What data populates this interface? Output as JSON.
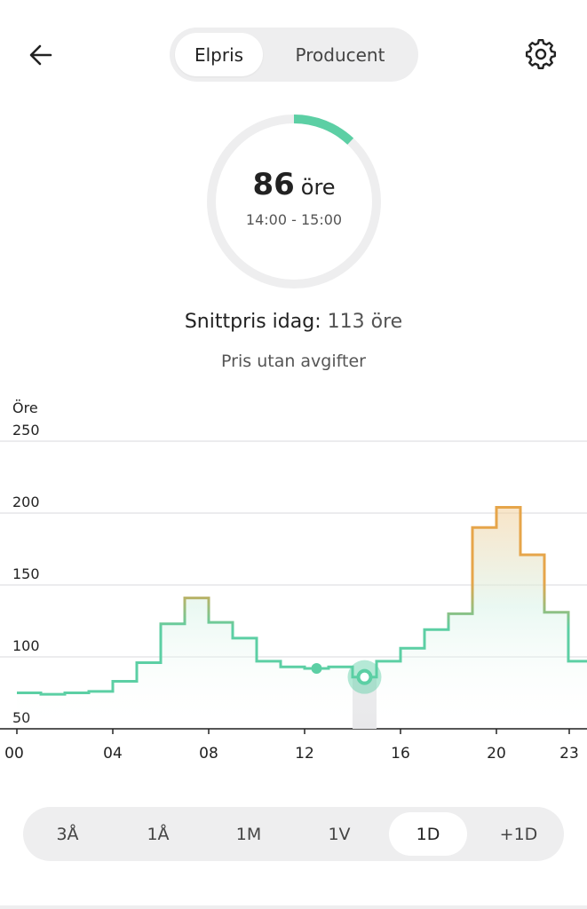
{
  "header": {
    "back_icon": "arrow-left-icon",
    "settings_icon": "gear-icon",
    "tabs": [
      {
        "label": "Elpris",
        "active": true
      },
      {
        "label": "Producent",
        "active": false
      }
    ]
  },
  "current": {
    "price": "86",
    "unit": "öre",
    "time_range": "14:00 - 15:00",
    "gauge_fraction": 0.12
  },
  "summary": {
    "avg_label": "Snittpris idag:",
    "avg_value": "113 öre",
    "subtitle": "Pris utan avgifter"
  },
  "colors": {
    "green": "#5ccfa4",
    "orange": "#e6a54a",
    "track": "#eeeeef"
  },
  "chart_data": {
    "type": "line",
    "step": true,
    "ylabel": "Öre",
    "ylim": [
      50,
      250
    ],
    "yticks": [
      50,
      100,
      150,
      200,
      250
    ],
    "xticks": [
      "00",
      "04",
      "08",
      "12",
      "16",
      "20",
      "23"
    ],
    "x": [
      0,
      1,
      2,
      3,
      4,
      5,
      6,
      7,
      8,
      9,
      10,
      11,
      12,
      13,
      14,
      15,
      16,
      17,
      18,
      19,
      20,
      21,
      22,
      23
    ],
    "values": [
      75,
      74,
      75,
      76,
      83,
      96,
      123,
      141,
      124,
      113,
      97,
      93,
      92,
      93,
      86,
      97,
      106,
      119,
      130,
      190,
      204,
      171,
      131,
      97
    ],
    "highlighted_hour": 14,
    "marker_hour": 12.5,
    "grid": true
  },
  "range": {
    "options": [
      "3Å",
      "1Å",
      "1M",
      "1V",
      "1D",
      "+1D"
    ],
    "active_index": 4
  }
}
